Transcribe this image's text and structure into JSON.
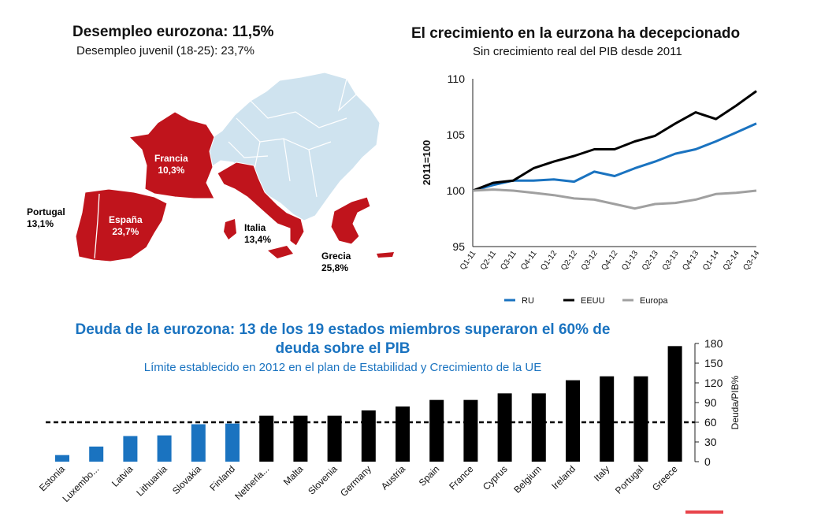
{
  "map_panel": {
    "title": "Desempleo eurozona: 11,5%",
    "subtitle": "Desempleo juvenil (18-25): 23,7%",
    "labels": [
      {
        "name": "Francia",
        "value": "10,3%",
        "color": "#ffffff"
      },
      {
        "name": "España",
        "value": "23,7%",
        "color": "#ffffff"
      },
      {
        "name": "Portugal",
        "value": "13,1%",
        "color": "#000000"
      },
      {
        "name": "Italia",
        "value": "13,4%",
        "color": "#000000"
      },
      {
        "name": "Grecia",
        "value": "25,8%",
        "color": "#000000"
      }
    ],
    "colors": {
      "highlight": "#c0141c",
      "other": "#cfe3ef"
    }
  },
  "line_panel": {
    "title": "El crecimiento en la eurzona ha decepcionado",
    "subtitle": "Sin crecimiento real del PIB desde 2011"
  },
  "bar_panel": {
    "title_line1": "Deuda de la eurozona: 13 de los 19 estados miembros superaron el 60% de",
    "title_line2": "deuda sobre el PIB",
    "subtitle": "Límite establecido en 2012 en el plan de Estabilidad y Crecimiento de la UE"
  },
  "chart_data": [
    {
      "type": "line",
      "title": "El crecimiento en la eurzona ha decepcionado",
      "subtitle": "Sin crecimiento real del PIB desde 2011",
      "ylabel": "2011=100",
      "ylim": [
        95,
        110
      ],
      "yticks": [
        95,
        100,
        105,
        110
      ],
      "x": [
        "Q1-11",
        "Q2-11",
        "Q3-11",
        "Q4-11",
        "Q1-12",
        "Q2-12",
        "Q3-12",
        "Q4-12",
        "Q1-13",
        "Q2-13",
        "Q3-13",
        "Q4-13",
        "Q1-14",
        "Q2-14",
        "Q3-14"
      ],
      "series": [
        {
          "name": "RU",
          "color": "#1a73c0",
          "values": [
            100,
            100.5,
            100.9,
            100.9,
            101.0,
            100.8,
            101.7,
            101.3,
            102.0,
            102.6,
            103.3,
            103.7,
            104.4,
            105.2,
            106.0
          ]
        },
        {
          "name": "EEUU",
          "color": "#000000",
          "values": [
            100,
            100.7,
            100.9,
            102.0,
            102.6,
            103.1,
            103.7,
            103.7,
            104.4,
            104.9,
            106.0,
            107.0,
            106.4,
            107.6,
            108.9
          ]
        },
        {
          "name": "Europa",
          "color": "#a0a0a0",
          "values": [
            100,
            100.1,
            100.0,
            99.8,
            99.6,
            99.3,
            99.2,
            98.8,
            98.4,
            98.8,
            98.9,
            99.2,
            99.7,
            99.8,
            100.0
          ]
        }
      ],
      "legend": "bottom"
    },
    {
      "type": "bar",
      "title": "Deuda de la eurozona: 13 de los 19 estados miembros superaron el 60% de deuda sobre el PIB",
      "subtitle": "Límite establecido en 2012 en el plan de Estabilidad y Crecimiento de la UE",
      "ylabel": "Deuda/PIB%",
      "ylim": [
        0,
        180
      ],
      "yticks": [
        0,
        30,
        60,
        90,
        120,
        150,
        180
      ],
      "threshold": 60,
      "categories": [
        "Estonia",
        "Luxembo...",
        "Latvia",
        "Lithuania",
        "Slovakia",
        "Finland",
        "Netherla...",
        "Malta",
        "Slovenia",
        "Germany",
        "Austria",
        "Spain",
        "France",
        "Cyprus",
        "Belgium",
        "Ireland",
        "Italy",
        "Portugal",
        "Greece"
      ],
      "values": [
        10,
        23,
        39,
        40,
        57,
        58,
        70,
        70,
        70,
        78,
        84,
        94,
        94,
        104,
        104,
        124,
        130,
        130,
        176
      ],
      "colors": {
        "below": "#1a73c0",
        "above": "#000000",
        "line": "#000000",
        "accent": "#e8434a"
      }
    }
  ]
}
